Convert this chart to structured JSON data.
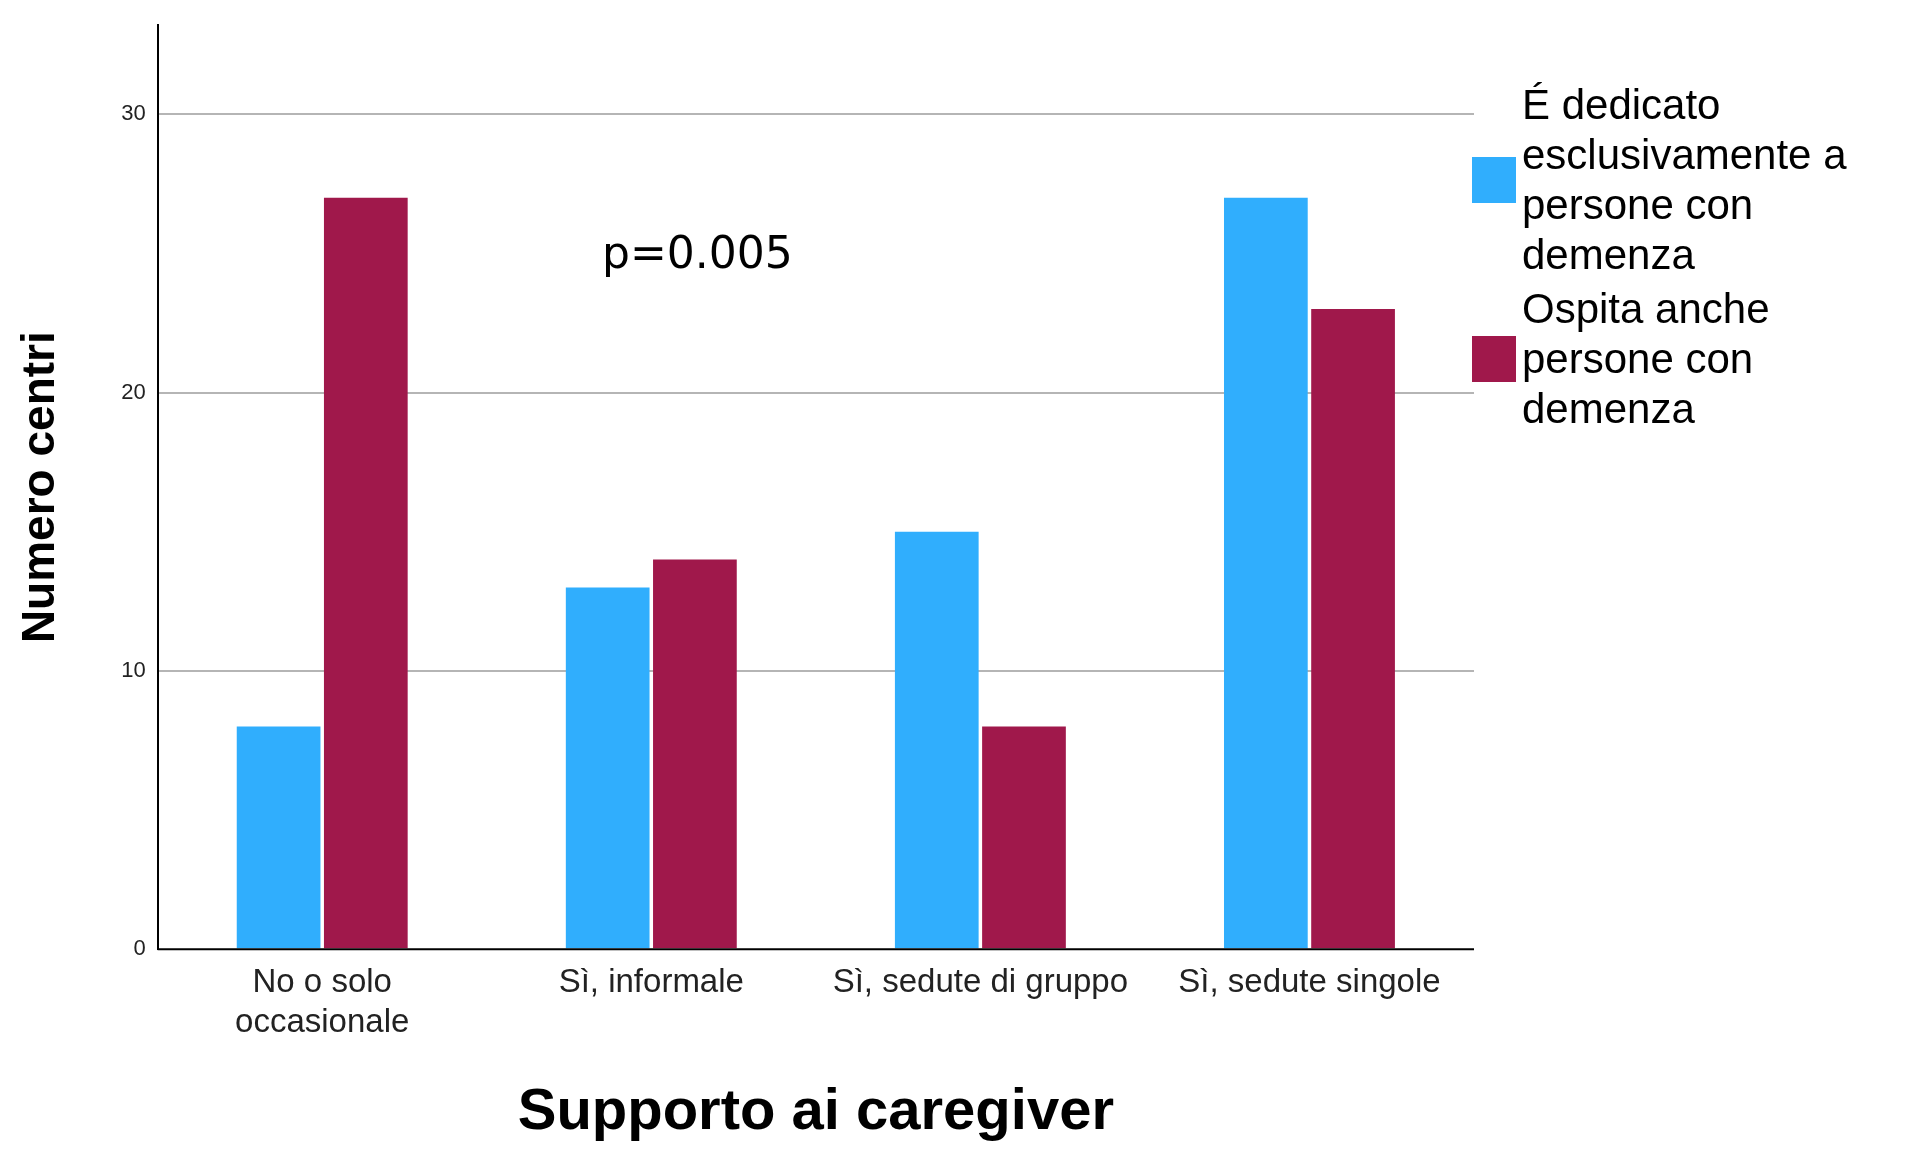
{
  "chart_data": {
    "type": "bar",
    "xlabel": "Supporto ai caregiver",
    "ylabel": "Numero centri",
    "categories": [
      "No o solo occasionale",
      "Sì, informale",
      "Sì, sedute di gruppo",
      "Sì, sedute singole"
    ],
    "series": [
      {
        "name": "É dedicato esclusivamente a persone con demenza",
        "color": "#30aefd",
        "values": [
          8,
          13,
          15,
          27
        ]
      },
      {
        "name": "Ospita anche persone con demenza",
        "color": "#a0184b",
        "values": [
          27,
          14,
          8,
          23
        ]
      }
    ],
    "ylim": [
      0,
      33.2
    ],
    "yticks": [
      0,
      10,
      20,
      30
    ],
    "grid": "y",
    "legend": "right",
    "annotations": [
      "p=0.005"
    ]
  }
}
